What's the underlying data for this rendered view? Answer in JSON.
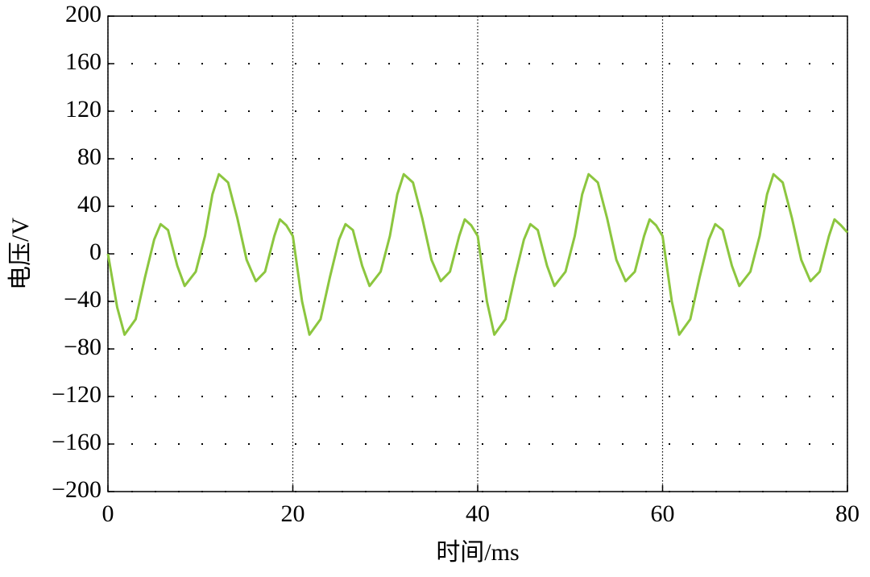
{
  "chart_data": {
    "type": "line",
    "xlabel": "时间/ms",
    "ylabel": "电压/V",
    "x": [
      0,
      1,
      1.8,
      3,
      4,
      5,
      5.7,
      6.5,
      7.5,
      8.3,
      9.5,
      10.5,
      11.3,
      12,
      13,
      14,
      15,
      16,
      17,
      18,
      18.6,
      19.3,
      20,
      21,
      21.8,
      23,
      24,
      25,
      25.7,
      26.5,
      27.5,
      28.3,
      29.5,
      30.5,
      31.3,
      32,
      33,
      34,
      35,
      36,
      37,
      38,
      38.6,
      39.3,
      40,
      41,
      41.8,
      43,
      44,
      45,
      45.7,
      46.5,
      47.5,
      48.3,
      49.5,
      50.5,
      51.3,
      52,
      53,
      54,
      55,
      56,
      57,
      58,
      58.6,
      59.3,
      60,
      61,
      61.8,
      63,
      64,
      65,
      65.7,
      66.5,
      67.5,
      68.3,
      69.5,
      70.5,
      71.3,
      72,
      73,
      74,
      75,
      76,
      77,
      78,
      78.6,
      79.3,
      80
    ],
    "values": [
      0,
      -45,
      -68,
      -55,
      -20,
      12,
      25,
      20,
      -10,
      -27,
      -15,
      15,
      50,
      67,
      60,
      30,
      -5,
      -23,
      -15,
      15,
      29,
      24,
      15,
      -40,
      -68,
      -55,
      -20,
      12,
      25,
      20,
      -10,
      -27,
      -15,
      15,
      50,
      67,
      60,
      30,
      -5,
      -23,
      -15,
      15,
      29,
      24,
      15,
      -40,
      -68,
      -55,
      -20,
      12,
      25,
      20,
      -10,
      -27,
      -15,
      15,
      50,
      67,
      60,
      30,
      -5,
      -23,
      -15,
      15,
      29,
      24,
      15,
      -40,
      -68,
      -55,
      -20,
      12,
      25,
      20,
      -10,
      -27,
      -15,
      15,
      50,
      67,
      60,
      30,
      -5,
      -23,
      -15,
      15,
      29,
      24,
      18
    ],
    "color": "#8cc63f",
    "xlim": [
      0,
      80
    ],
    "xticks": [
      0,
      20,
      40,
      60,
      80
    ],
    "ylim": [
      -200,
      200
    ],
    "yticks": [
      {
        "value": -200,
        "label": "−200"
      },
      {
        "value": -160,
        "label": "−160"
      },
      {
        "value": -120,
        "label": "−120"
      },
      {
        "value": -80,
        "label": "−80"
      },
      {
        "value": -40,
        "label": "−40"
      },
      0,
      40,
      80,
      120,
      160,
      200
    ],
    "grid": true
  }
}
